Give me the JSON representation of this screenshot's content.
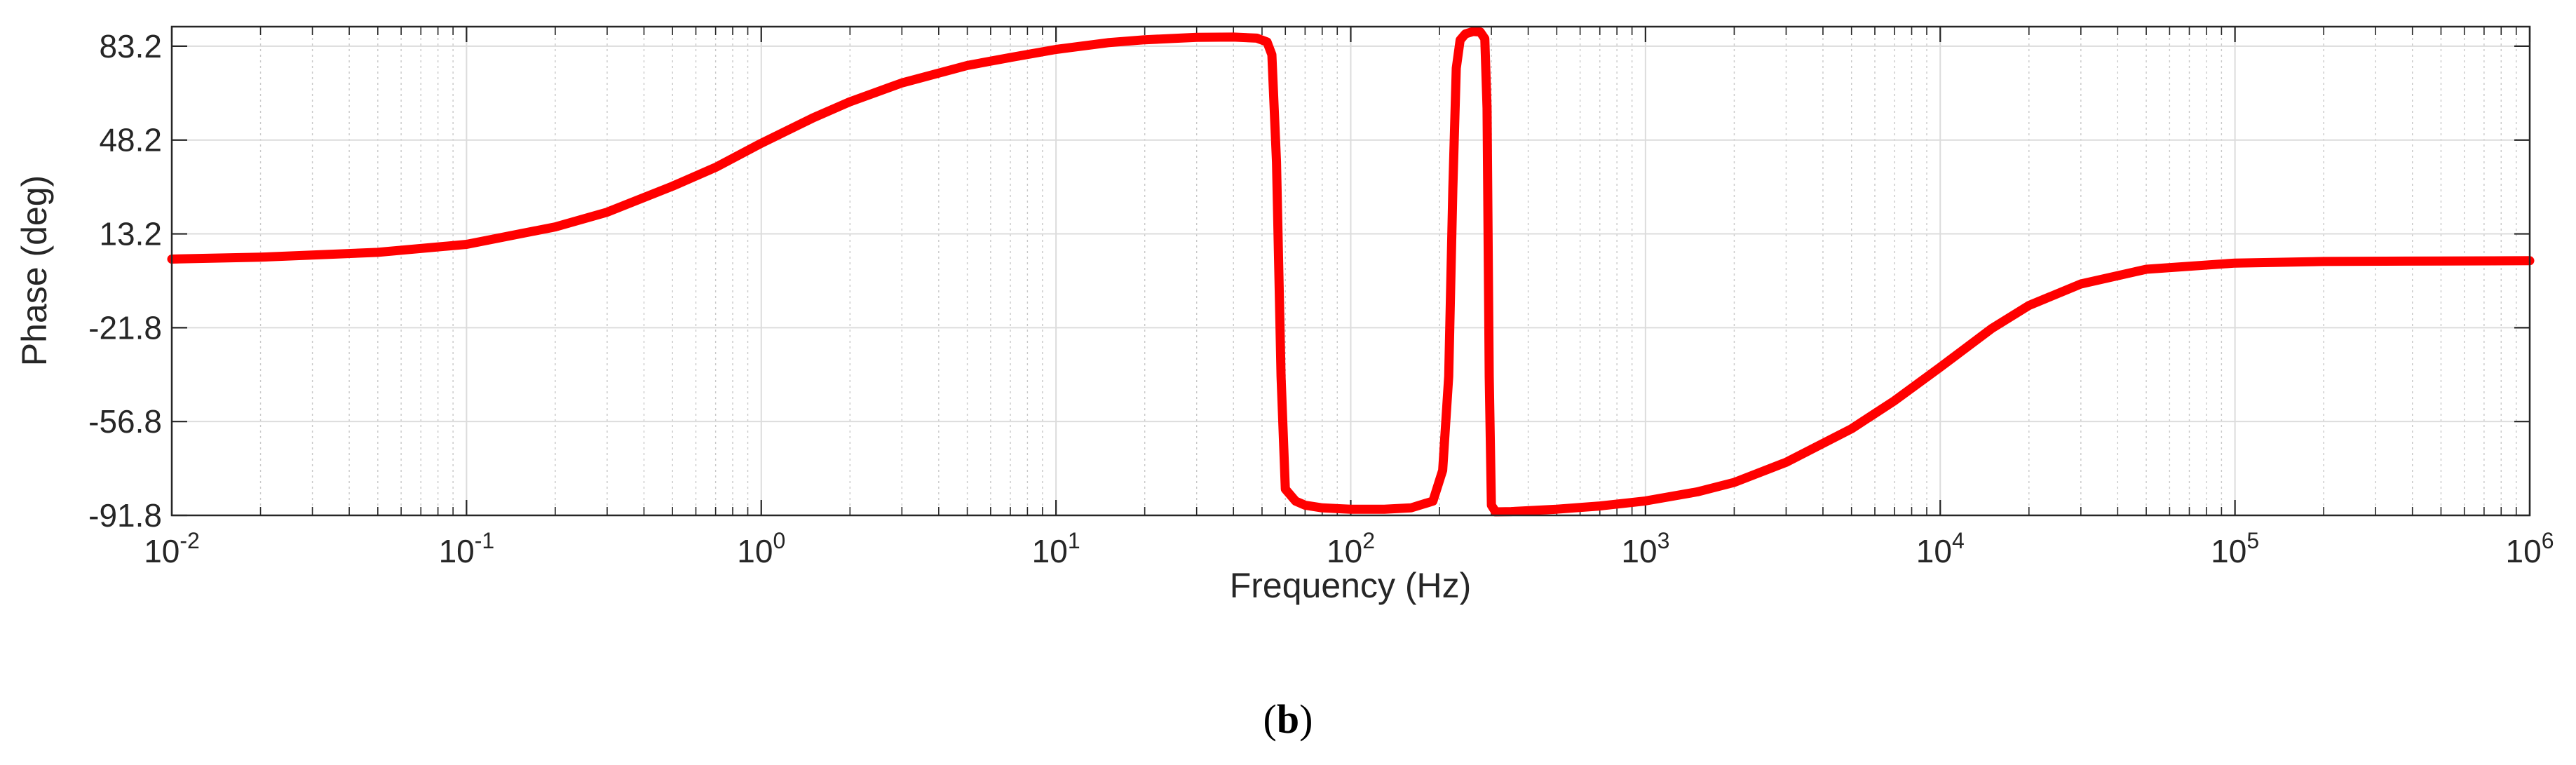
{
  "chart_data": {
    "type": "line",
    "xscale": "log",
    "xlabel": "Frequency  (Hz)",
    "ylabel": "Phase (deg)",
    "xlim": [
      0.01,
      1000000
    ],
    "ylim": [
      -91.8,
      90.5
    ],
    "x_ticks": [
      {
        "value": 0.01,
        "base": "10",
        "exp": "-2"
      },
      {
        "value": 0.1,
        "base": "10",
        "exp": "-1"
      },
      {
        "value": 1,
        "base": "10",
        "exp": "0"
      },
      {
        "value": 10,
        "base": "10",
        "exp": "1"
      },
      {
        "value": 100,
        "base": "10",
        "exp": "2"
      },
      {
        "value": 1000,
        "base": "10",
        "exp": "3"
      },
      {
        "value": 10000,
        "base": "10",
        "exp": "4"
      },
      {
        "value": 100000,
        "base": "10",
        "exp": "5"
      },
      {
        "value": 1000000,
        "base": "10",
        "exp": "6"
      }
    ],
    "y_ticks": [
      {
        "value": 83.2,
        "label": "83.2"
      },
      {
        "value": 48.2,
        "label": "48.2"
      },
      {
        "value": 13.2,
        "label": "13.2"
      },
      {
        "value": -21.8,
        "label": "-21.8"
      },
      {
        "value": -56.8,
        "label": "-56.8"
      },
      {
        "value": -91.8,
        "label": "-91.8"
      }
    ],
    "grid": true,
    "minor_grid": true,
    "series": [
      {
        "name": "Phase",
        "color": "#ff0000",
        "x": [
          0.01,
          0.02,
          0.05,
          0.1,
          0.2,
          0.3,
          0.5,
          0.7,
          1,
          1.5,
          2,
          3,
          5,
          7,
          10,
          15,
          20,
          30,
          40,
          48,
          52,
          54,
          56,
          58,
          60,
          65,
          70,
          80,
          100,
          130,
          160,
          190,
          205,
          215,
          222,
          228,
          235,
          245,
          260,
          275,
          285,
          290,
          295,
          300,
          310,
          350,
          500,
          700,
          1000,
          1500,
          2000,
          3000,
          5000,
          7000,
          10000,
          15000,
          20000,
          30000,
          50000,
          100000,
          200000,
          500000,
          1000000
        ],
        "values": [
          3.8,
          4.5,
          6.3,
          9.3,
          15.8,
          21.3,
          31.0,
          38.0,
          47.0,
          56.5,
          62.5,
          69.5,
          76.0,
          79.0,
          82.0,
          84.5,
          85.6,
          86.5,
          86.6,
          86.2,
          84.8,
          80.0,
          40.0,
          -40.0,
          -82.0,
          -86.5,
          -88.0,
          -89.0,
          -89.5,
          -89.5,
          -89.0,
          -86.5,
          -75.0,
          -40.0,
          30.0,
          75.0,
          85.5,
          87.8,
          88.7,
          88.5,
          86.0,
          60.0,
          -40.0,
          -88.0,
          -90.5,
          -90.4,
          -89.5,
          -88.3,
          -86.4,
          -83.0,
          -79.5,
          -72.0,
          -59.5,
          -49.0,
          -36.5,
          -22.0,
          -13.5,
          -5.5,
          0.0,
          2.3,
          2.9,
          3.1,
          3.2
        ]
      }
    ]
  },
  "caption": {
    "open": "(",
    "letter": "b",
    "close": ")"
  }
}
